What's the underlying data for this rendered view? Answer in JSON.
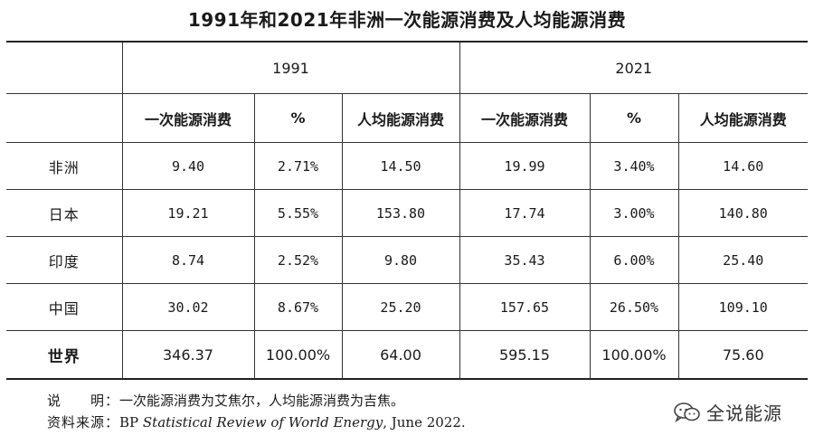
{
  "title": "1991年和2021年非洲一次能源消费及人均能源消费",
  "years": [
    "1991",
    "2021"
  ],
  "columns": [
    "一次能源消费",
    "%",
    "人均能源消费",
    "一次能源消费",
    "%",
    "人均能源消费"
  ],
  "rows": [
    {
      "name": "非洲",
      "v": [
        "9.40",
        "2.71%",
        "14.50",
        "19.99",
        "3.40%",
        "14.60"
      ]
    },
    {
      "name": "日本",
      "v": [
        "19.21",
        "5.55%",
        "153.80",
        "17.74",
        "3.00%",
        "140.80"
      ]
    },
    {
      "name": "印度",
      "v": [
        "8.74",
        "2.52%",
        "9.80",
        "35.43",
        "6.00%",
        "25.40"
      ]
    },
    {
      "name": "中国",
      "v": [
        "30.02",
        "8.67%",
        "25.20",
        "157.65",
        "26.50%",
        "109.10"
      ]
    },
    {
      "name": "世界",
      "v": [
        "346.37",
        "100.00%",
        "64.00",
        "595.15",
        "100.00%",
        "75.60"
      ]
    }
  ],
  "notes": {
    "label1": "说　　明：",
    "text1": "一次能源消费为艾焦尔，人均能源消费为吉焦。",
    "label2": "资料来源：",
    "text2_prefix": "BP ",
    "text2_italic": "Statistical Review of World Energy",
    "text2_suffix": ", June 2022."
  },
  "brand": {
    "name": "全说能源",
    "icon": "wechat-icon"
  }
}
